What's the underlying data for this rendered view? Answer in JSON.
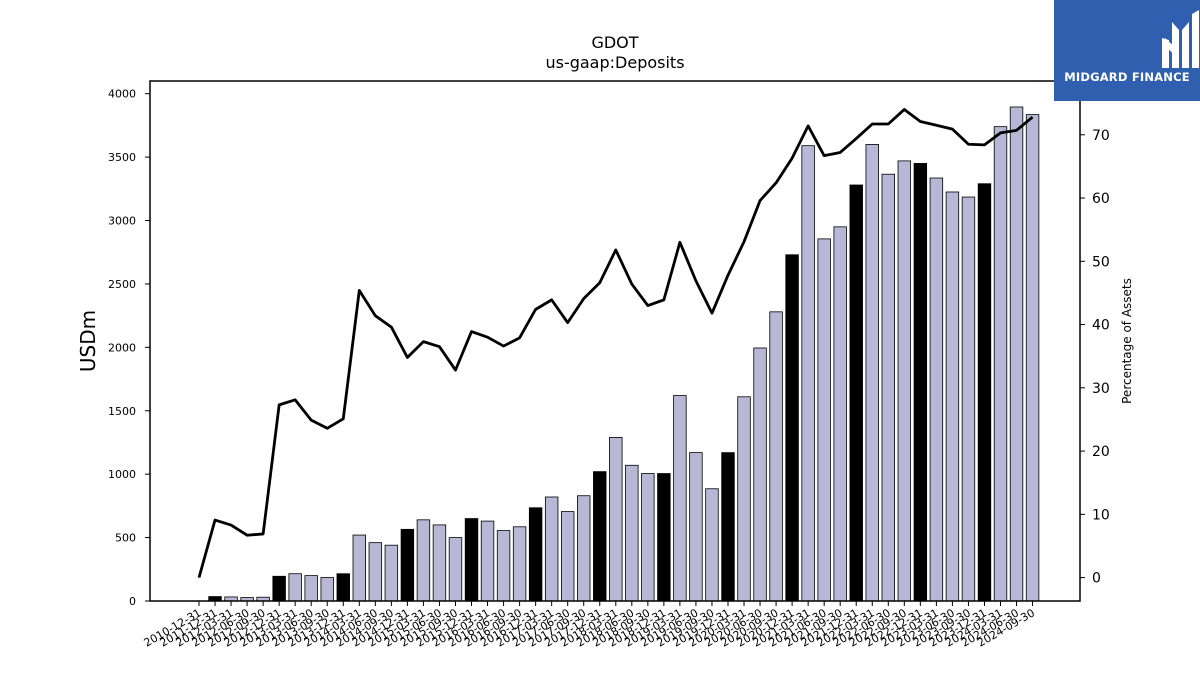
{
  "chart_data": {
    "type": "bar",
    "title": "GDOT",
    "subtitle": "us-gaap:Deposits",
    "ylabel": "USDm",
    "y2label": "Percentage of Assets",
    "ylim": [
      0,
      4100
    ],
    "y2lim": [
      -3.7,
      78.5
    ],
    "yticks": [
      0,
      500,
      1000,
      1500,
      2000,
      2500,
      3000,
      3500,
      4000
    ],
    "y2ticks": [
      0,
      10,
      20,
      30,
      40,
      50,
      60,
      70
    ],
    "categories": [
      "2010-12-31",
      "2011-12-31",
      "2012-03-31",
      "2012-06-30",
      "2012-09-30",
      "2012-12-31",
      "2013-03-31",
      "2013-06-30",
      "2013-09-30",
      "2013-12-31",
      "2014-03-31",
      "2014-06-30",
      "2014-09-30",
      "2014-12-31",
      "2015-03-31",
      "2015-06-30",
      "2015-09-30",
      "2015-12-31",
      "2016-03-31",
      "2016-06-30",
      "2016-09-30",
      "2016-12-31",
      "2017-03-31",
      "2017-06-30",
      "2017-09-30",
      "2017-12-31",
      "2018-03-31",
      "2018-06-30",
      "2018-09-30",
      "2018-12-31",
      "2019-03-31",
      "2019-06-30",
      "2019-09-30",
      "2019-12-31",
      "2020-03-31",
      "2020-06-30",
      "2020-09-30",
      "2020-12-31",
      "2021-03-31",
      "2021-06-30",
      "2021-09-30",
      "2021-12-31",
      "2022-03-31",
      "2022-06-30",
      "2022-09-30",
      "2022-12-31",
      "2023-03-31",
      "2023-06-30",
      "2023-09-30",
      "2023-12-31",
      "2024-03-31",
      "2024-06-30",
      "2024-09-30"
    ],
    "series": [
      {
        "type": "bar",
        "values": [
          0,
          35,
          32,
          27,
          30,
          195,
          215,
          200,
          185,
          215,
          520,
          460,
          440,
          565,
          640,
          600,
          500,
          650,
          630,
          555,
          585,
          735,
          820,
          705,
          830,
          1020,
          1290,
          1070,
          1005,
          1005,
          1620,
          1170,
          885,
          1170,
          1610,
          1995,
          2280,
          2730,
          3590,
          2855,
          2950,
          3280,
          3600,
          3365,
          3470,
          3450,
          3335,
          3225,
          3185,
          3290,
          3740,
          3895,
          3835
        ],
        "highlight": [
          false,
          true,
          false,
          false,
          false,
          true,
          false,
          false,
          false,
          true,
          false,
          false,
          false,
          true,
          false,
          false,
          false,
          true,
          false,
          false,
          false,
          true,
          false,
          false,
          false,
          true,
          false,
          false,
          false,
          true,
          false,
          false,
          false,
          true,
          false,
          false,
          false,
          true,
          false,
          false,
          false,
          true,
          false,
          false,
          false,
          true,
          false,
          false,
          false,
          true,
          false,
          false,
          false
        ]
      },
      {
        "type": "line",
        "axis": "right",
        "values": [
          0,
          9.1,
          8.3,
          6.7,
          6.9,
          27.3,
          28.1,
          24.9,
          23.6,
          25.1,
          45.4,
          41.4,
          39.6,
          34.8,
          37.3,
          36.5,
          32.8,
          38.9,
          38.0,
          36.6,
          37.9,
          42.4,
          43.9,
          40.3,
          44.1,
          46.6,
          51.8,
          46.4,
          43.0,
          43.9,
          53.0,
          46.9,
          41.8,
          47.8,
          53.1,
          59.6,
          62.4,
          66.3,
          71.4,
          66.7,
          67.2,
          69.4,
          71.7,
          71.7,
          74.0,
          72.1,
          71.5,
          70.9,
          68.5,
          68.4,
          70.3,
          70.7,
          72.8
        ]
      }
    ],
    "colors": {
      "bar": "#b9b6d6",
      "bar_highlight": "#000000",
      "line": "#000000",
      "axis": "#000000"
    }
  },
  "logo": {
    "text": "MIDGARD FINANCE",
    "background": "#2f5fae"
  }
}
